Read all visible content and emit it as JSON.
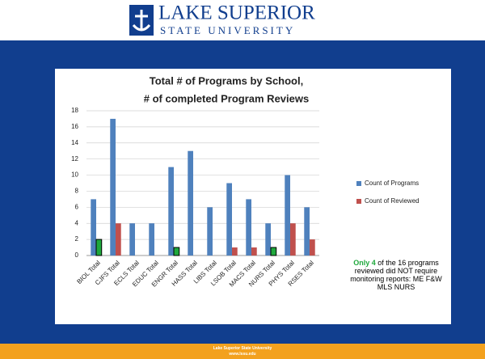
{
  "header": {
    "logo_line1": "LAKE SUPERIOR",
    "logo_line2": "STATE UNIVERSITY"
  },
  "footer": {
    "line1": "Lake Superior State University",
    "line2": "www.lssu.edu"
  },
  "chart_data": {
    "type": "bar",
    "title": [
      "Total # of Programs by School,",
      "# of completed Program Reviews"
    ],
    "categories": [
      "BIOL Total",
      "CJFS Total",
      "ECLS Total",
      "EDUC Total",
      "ENGR Total",
      "HASS Total",
      "LIBS Total",
      "LSOB Total",
      "MACS Total",
      "NURS Total",
      "PHYS Total",
      "RSES Total"
    ],
    "series": [
      {
        "name": "Count of Programs",
        "color": "#4f81bd",
        "values": [
          7,
          17,
          4,
          4,
          11,
          13,
          6,
          9,
          7,
          4,
          10,
          6
        ]
      },
      {
        "name": "Count of Reviewed",
        "color": "#c0504d",
        "values": [
          2,
          4,
          0,
          0,
          1,
          0,
          0,
          1,
          1,
          1,
          4,
          2
        ],
        "colors": [
          "#1fa83c",
          "#c0504d",
          "#c0504d",
          "#c0504d",
          "#1fa83c",
          "#c0504d",
          "#c0504d",
          "#c0504d",
          "#c0504d",
          "#1fa83c",
          "#c0504d",
          "#c0504d"
        ]
      }
    ],
    "ylim": [
      0,
      18
    ],
    "yticks": [
      0,
      2,
      4,
      6,
      8,
      10,
      12,
      14,
      16,
      18
    ],
    "grid": true,
    "legend": "right",
    "annotation_highlight": "Only 4",
    "annotation": "of the 16 programs reviewed did NOT require monitoring reports: ME F&W MLS NURS"
  }
}
